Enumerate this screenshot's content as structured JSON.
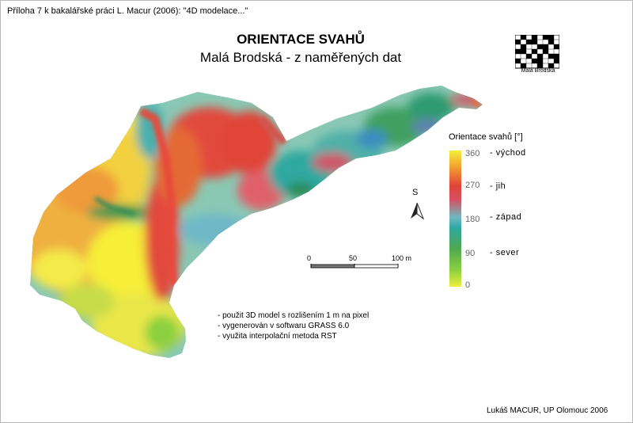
{
  "header_note": "Příloha 7 k bakalářské práci L. Macur (2006): \"4D modelace...\"",
  "title": "ORIENTACE SVAHŮ",
  "subtitle": "Malá Brodská - z naměřených dat",
  "logo_text": "Malá Brodská",
  "legend": {
    "title": "Orientace svahů [°]",
    "ticks": [
      "360",
      "270",
      "180",
      "90",
      "0"
    ],
    "directions": [
      "- východ",
      "- jih",
      "- západ",
      "- sever"
    ],
    "colors": [
      "#f4ee3a",
      "#e04438",
      "#2ea8a0",
      "#4fa850",
      "#eef03c"
    ]
  },
  "north_arrow_letter": "S",
  "scale_bar": {
    "labels": [
      "0",
      "50",
      "100 m"
    ]
  },
  "notes": [
    "- použit 3D model s rozlišením 1 m na pixel",
    "- vygenerován v softwaru GRASS 6.0",
    "- využita interpolační metoda RST"
  ],
  "credit": "Lukáš MACUR, UP Olomouc 2006"
}
